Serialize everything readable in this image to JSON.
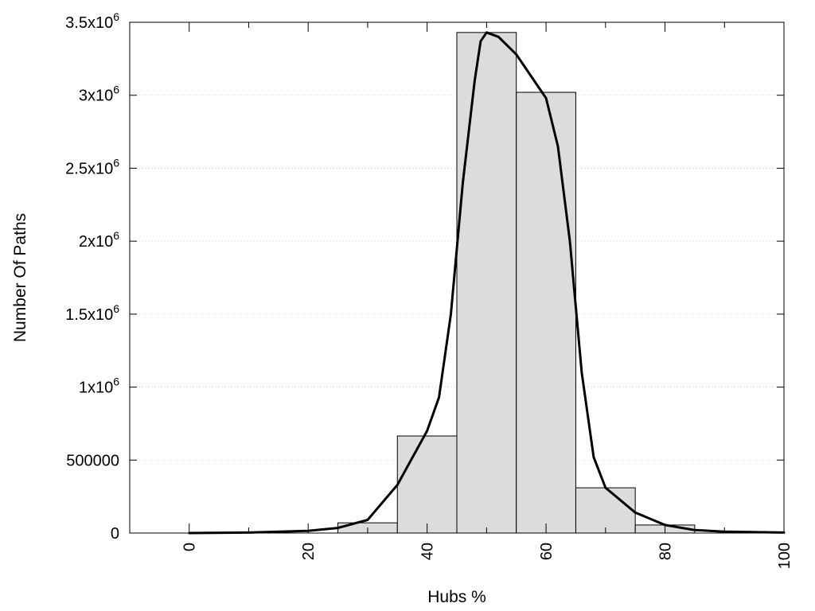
{
  "chart_data": {
    "type": "bar",
    "title": "",
    "xlabel": "Hubs %",
    "ylabel": "Number Of Paths",
    "xlim": [
      -10,
      100
    ],
    "ylim": [
      0,
      3500000
    ],
    "grid": true,
    "bar_color": "#dcdcdc",
    "line_color": "#000000",
    "x_ticks": [
      {
        "value": 0,
        "label": "0"
      },
      {
        "value": 20,
        "label": "20"
      },
      {
        "value": 40,
        "label": "40"
      },
      {
        "value": 60,
        "label": "60"
      },
      {
        "value": 80,
        "label": "80"
      },
      {
        "value": 100,
        "label": "100"
      }
    ],
    "x_minor_ticks": [
      10,
      30,
      50,
      70,
      90
    ],
    "y_ticks": [
      {
        "value": 0,
        "base": "0",
        "sup": ""
      },
      {
        "value": 500000,
        "base": "500000",
        "sup": ""
      },
      {
        "value": 1000000,
        "base": "1x10",
        "sup": "6"
      },
      {
        "value": 1500000,
        "base": "1.5x10",
        "sup": "6"
      },
      {
        "value": 2000000,
        "base": "2x10",
        "sup": "6"
      },
      {
        "value": 2500000,
        "base": "2.5x10",
        "sup": "6"
      },
      {
        "value": 3000000,
        "base": "3x10",
        "sup": "6"
      },
      {
        "value": 3500000,
        "base": "3.5x10",
        "sup": "6"
      }
    ],
    "bars": [
      {
        "x0": 25,
        "x1": 35,
        "value": 70000
      },
      {
        "x0": 35,
        "x1": 45,
        "value": 665000
      },
      {
        "x0": 45,
        "x1": 55,
        "value": 3430000
      },
      {
        "x0": 55,
        "x1": 65,
        "value": 3020000
      },
      {
        "x0": 65,
        "x1": 75,
        "value": 310000
      },
      {
        "x0": 75,
        "x1": 85,
        "value": 55000
      }
    ],
    "line": {
      "x": [
        0,
        10,
        20,
        25,
        30,
        35,
        40,
        42,
        44,
        46,
        48,
        49,
        50,
        52,
        55,
        58,
        60,
        62,
        64,
        66,
        68,
        70,
        75,
        80,
        85,
        90,
        100
      ],
      "y": [
        0,
        3000,
        15000,
        35000,
        90000,
        330000,
        700000,
        930000,
        1500000,
        2400000,
        3100000,
        3370000,
        3430000,
        3400000,
        3280000,
        3100000,
        2980000,
        2650000,
        2000000,
        1100000,
        520000,
        310000,
        140000,
        55000,
        20000,
        10000,
        3000
      ]
    }
  }
}
